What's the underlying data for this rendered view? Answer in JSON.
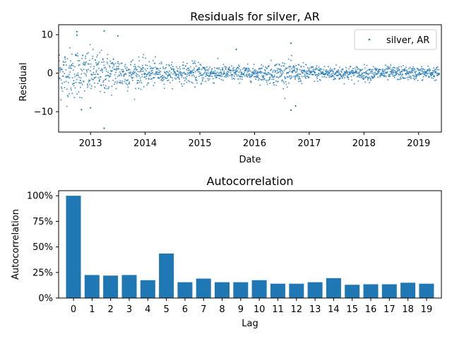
{
  "chart_data": [
    {
      "type": "scatter",
      "title": "Residuals for silver, AR",
      "xlabel": "Date",
      "ylabel": "Residual",
      "x_range": [
        "2012-06",
        "2019-06"
      ],
      "ylim": [
        -15.3,
        12.6
      ],
      "x_ticks": [
        "2013",
        "2014",
        "2015",
        "2016",
        "2017",
        "2018",
        "2019"
      ],
      "y_ticks": [
        "−10",
        "0",
        "10"
      ],
      "legend": {
        "position": "top-right",
        "entries": [
          "silver, AR"
        ]
      },
      "series": [
        {
          "name": "silver, AR",
          "color": "#1f77b4",
          "noise_envelope": [
            {
              "year": 2012.4,
              "residual_spread": 4.0
            },
            {
              "year": 2013.0,
              "residual_spread": 3.5
            },
            {
              "year": 2013.8,
              "residual_spread": 2.3
            },
            {
              "year": 2014.5,
              "residual_spread": 1.4
            },
            {
              "year": 2015.0,
              "residual_spread": 1.7
            },
            {
              "year": 2015.5,
              "residual_spread": 1.2
            },
            {
              "year": 2016.0,
              "residual_spread": 1.1
            },
            {
              "year": 2016.5,
              "residual_spread": 2.0
            },
            {
              "year": 2017.0,
              "residual_spread": 1.2
            },
            {
              "year": 2018.0,
              "residual_spread": 1.1
            },
            {
              "year": 2019.0,
              "residual_spread": 1.0
            },
            {
              "year": 2019.4,
              "residual_spread": 1.0
            }
          ],
          "notable_points": [
            {
              "date": "2013-04",
              "residual": -14.3
            },
            {
              "date": "2013-04",
              "residual": 11.0
            },
            {
              "date": "2012-10",
              "residual": 10.8
            },
            {
              "date": "2012-10",
              "residual": 9.9
            },
            {
              "date": "2013-07",
              "residual": 9.7
            },
            {
              "date": "2013-01",
              "residual": -9.0
            },
            {
              "date": "2012-11",
              "residual": -9.5
            },
            {
              "date": "2016-09",
              "residual": 7.8
            },
            {
              "date": "2016-09",
              "residual": -9.6
            },
            {
              "date": "2015-09",
              "residual": 6.2
            },
            {
              "date": "2016-10",
              "residual": -8.5
            }
          ]
        }
      ]
    },
    {
      "type": "bar",
      "title": "Autocorrelation",
      "xlabel": "Lag",
      "ylabel": "Autocorrelation",
      "ylim": [
        0,
        1.05
      ],
      "y_ticks": [
        "0%",
        "25%",
        "50%",
        "75%",
        "100%"
      ],
      "categories": [
        "0",
        "1",
        "2",
        "3",
        "4",
        "5",
        "6",
        "7",
        "8",
        "9",
        "10",
        "11",
        "12",
        "13",
        "14",
        "15",
        "16",
        "17",
        "18",
        "19"
      ],
      "values": [
        1.0,
        0.225,
        0.22,
        0.225,
        0.175,
        0.435,
        0.155,
        0.19,
        0.155,
        0.155,
        0.175,
        0.14,
        0.14,
        0.155,
        0.195,
        0.13,
        0.135,
        0.135,
        0.15,
        0.14
      ],
      "color": "#1f77b4"
    }
  ]
}
